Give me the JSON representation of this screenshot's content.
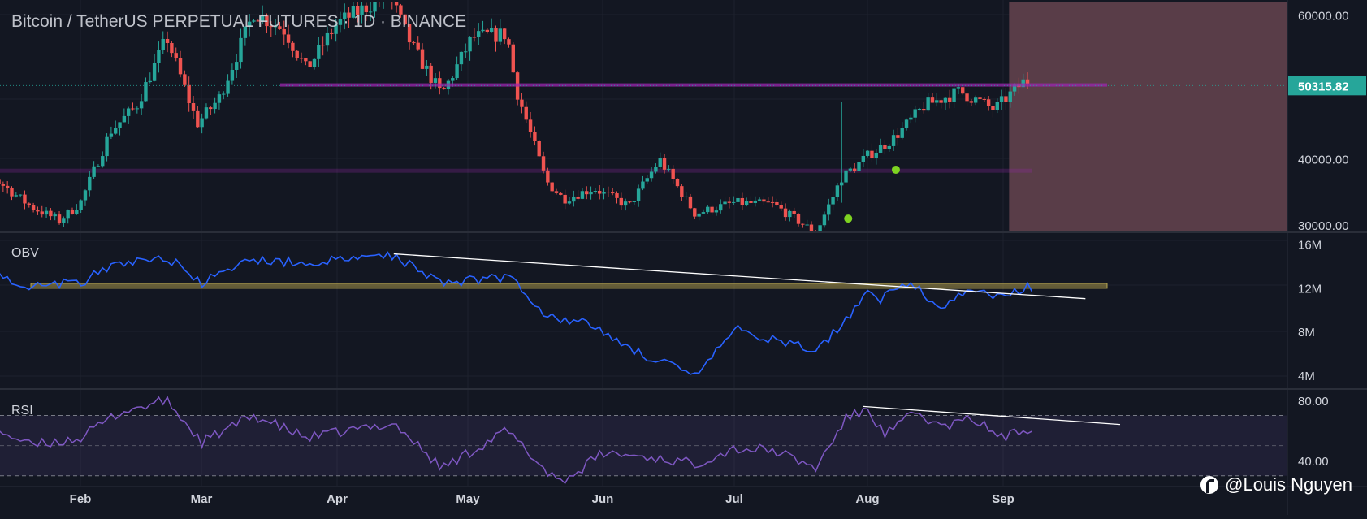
{
  "header": {
    "symbol": "Bitcoin / TetherUS PERPETUAL FUTURES",
    "interval": "1D",
    "exchange": "BINANCE"
  },
  "watermark": {
    "text": "@Louis Nguyen",
    "icon": "tradingview-logo-icon"
  },
  "colors": {
    "background": "#131722",
    "grid": "#1e222d",
    "up": "#26a69a",
    "down": "#ef5350",
    "obv_line": "#2962ff",
    "rsi_line": "#7e57c2",
    "price_label_bg": "#26a69a",
    "resistance": "#9c27b0",
    "support_band": "#c6b04f",
    "zone": "#5d3f4b",
    "marker": "#7ed321",
    "trendline": "#ffffff"
  },
  "chart_data": [
    {
      "type": "candlestick",
      "name": "price",
      "x_axis_labels": [
        "Feb",
        "Mar",
        "Apr",
        "May",
        "Jun",
        "Jul",
        "Aug",
        "Sep"
      ],
      "y_tick_labels": [
        "60000.00",
        "40000.00",
        "30000.00"
      ],
      "ylim": [
        30000,
        62000
      ],
      "current_price_label": "50315.82",
      "current_price": 50315.82,
      "horizontal_levels": [
        {
          "name": "resistance",
          "value": 50400,
          "from_month": "Mar",
          "to_month": "Sep"
        },
        {
          "name": "support",
          "value": 38400,
          "from_month": "Jan",
          "to_month": "Sep"
        }
      ],
      "shaded_zone": {
        "from_month": "Sep",
        "description_none": ""
      },
      "anchors_month_close": [
        [
          "Jan 10",
          38000
        ],
        [
          "Jan 20",
          33500
        ],
        [
          "Jan 27",
          31500
        ],
        [
          "Feb 1",
          34000
        ],
        [
          "Feb 8",
          44000
        ],
        [
          "Feb 14",
          47500
        ],
        [
          "Feb 21",
          57000
        ],
        [
          "Feb 28",
          45000
        ],
        [
          "Mar 5",
          48500
        ],
        [
          "Mar 13",
          60500
        ],
        [
          "Mar 20",
          58000
        ],
        [
          "Mar 25",
          52500
        ],
        [
          "Apr 1",
          59000
        ],
        [
          "Apr 13",
          63000
        ],
        [
          "Apr 18",
          56000
        ],
        [
          "Apr 25",
          49000
        ],
        [
          "May 2",
          57000
        ],
        [
          "May 10",
          57500
        ],
        [
          "May 12",
          50000
        ],
        [
          "May 19",
          37000
        ],
        [
          "May 23",
          34500
        ],
        [
          "May 30",
          36000
        ],
        [
          "Jun 7",
          33500
        ],
        [
          "Jun 14",
          40000
        ],
        [
          "Jun 22",
          32500
        ],
        [
          "Jul 1",
          34000
        ],
        [
          "Jul 10",
          33800
        ],
        [
          "Jul 20",
          29800
        ],
        [
          "Jul 26",
          37500
        ],
        [
          "Aug 1",
          40500
        ],
        [
          "Aug 7",
          43000
        ],
        [
          "Aug 14",
          47500
        ],
        [
          "Aug 22",
          49500
        ],
        [
          "Aug 30",
          47000
        ],
        [
          "Sep 6",
          51000
        ]
      ],
      "markers": [
        {
          "date": "Jul 26",
          "value": 31800
        },
        {
          "date": "Aug 6",
          "value": 38600
        }
      ]
    },
    {
      "type": "line",
      "name": "OBV",
      "label": "OBV",
      "y_tick_labels": [
        "16M",
        "12M",
        "8M",
        "4M"
      ],
      "ylim": [
        2.8,
        17
      ],
      "unit": "M",
      "anchors": [
        [
          "Jan 10",
          13.3
        ],
        [
          "Jan 20",
          12.2
        ],
        [
          "Feb 1",
          12.5
        ],
        [
          "Feb 10",
          14.2
        ],
        [
          "Feb 21",
          14.8
        ],
        [
          "Mar 1",
          12.4
        ],
        [
          "Mar 13",
          14.6
        ],
        [
          "Mar 25",
          14.2
        ],
        [
          "Apr 14",
          15.0
        ],
        [
          "Apr 25",
          12.5
        ],
        [
          "May 11",
          13.0
        ],
        [
          "May 19",
          9.5
        ],
        [
          "May 30",
          8.5
        ],
        [
          "Jun 7",
          6.5
        ],
        [
          "Jun 22",
          3.8
        ],
        [
          "Jul 1",
          8.2
        ],
        [
          "Jul 20",
          6.2
        ],
        [
          "Jul 28",
          9.5
        ],
        [
          "Aug 1",
          12.0
        ],
        [
          "Aug 4",
          11.0
        ],
        [
          "Aug 10",
          12.5
        ],
        [
          "Aug 18",
          10.3
        ],
        [
          "Aug 25",
          11.8
        ],
        [
          "Sep 1",
          11.0
        ],
        [
          "Sep 7",
          12.1
        ]
      ],
      "support_band": {
        "value": 12.1,
        "from_month": "Jan",
        "to_month": "Sep"
      },
      "trendline": {
        "from": [
          "Apr 14",
          15.1
        ],
        "to": [
          "Sep 20",
          11.0
        ]
      }
    },
    {
      "type": "line",
      "name": "RSI",
      "label": "RSI",
      "y_tick_labels": [
        "80.00",
        "40.00"
      ],
      "ylim": [
        25,
        87
      ],
      "overbought": 70,
      "middle": 50,
      "oversold": 30,
      "anchors": [
        [
          "Jan 10",
          64
        ],
        [
          "Jan 20",
          50
        ],
        [
          "Feb 1",
          55
        ],
        [
          "Feb 10",
          72
        ],
        [
          "Feb 21",
          80
        ],
        [
          "Mar 1",
          52
        ],
        [
          "Mar 13",
          70
        ],
        [
          "Mar 25",
          55
        ],
        [
          "Apr 14",
          65
        ],
        [
          "Apr 25",
          35
        ],
        [
          "May 10",
          60
        ],
        [
          "May 19",
          33
        ],
        [
          "May 23",
          26
        ],
        [
          "Jun 1",
          45
        ],
        [
          "Jun 10",
          43
        ],
        [
          "Jun 22",
          38
        ],
        [
          "Jul 1",
          48
        ],
        [
          "Jul 10",
          47
        ],
        [
          "Jul 20",
          35
        ],
        [
          "Jul 27",
          68
        ],
        [
          "Aug 1",
          74
        ],
        [
          "Aug 5",
          57
        ],
        [
          "Aug 12",
          72
        ],
        [
          "Aug 18",
          62
        ],
        [
          "Aug 25",
          68
        ],
        [
          "Sep 1",
          55
        ],
        [
          "Sep 8",
          63
        ]
      ],
      "trendline": {
        "from": [
          "Jul 31",
          76
        ],
        "to": [
          "Sep 28",
          64
        ]
      }
    }
  ]
}
